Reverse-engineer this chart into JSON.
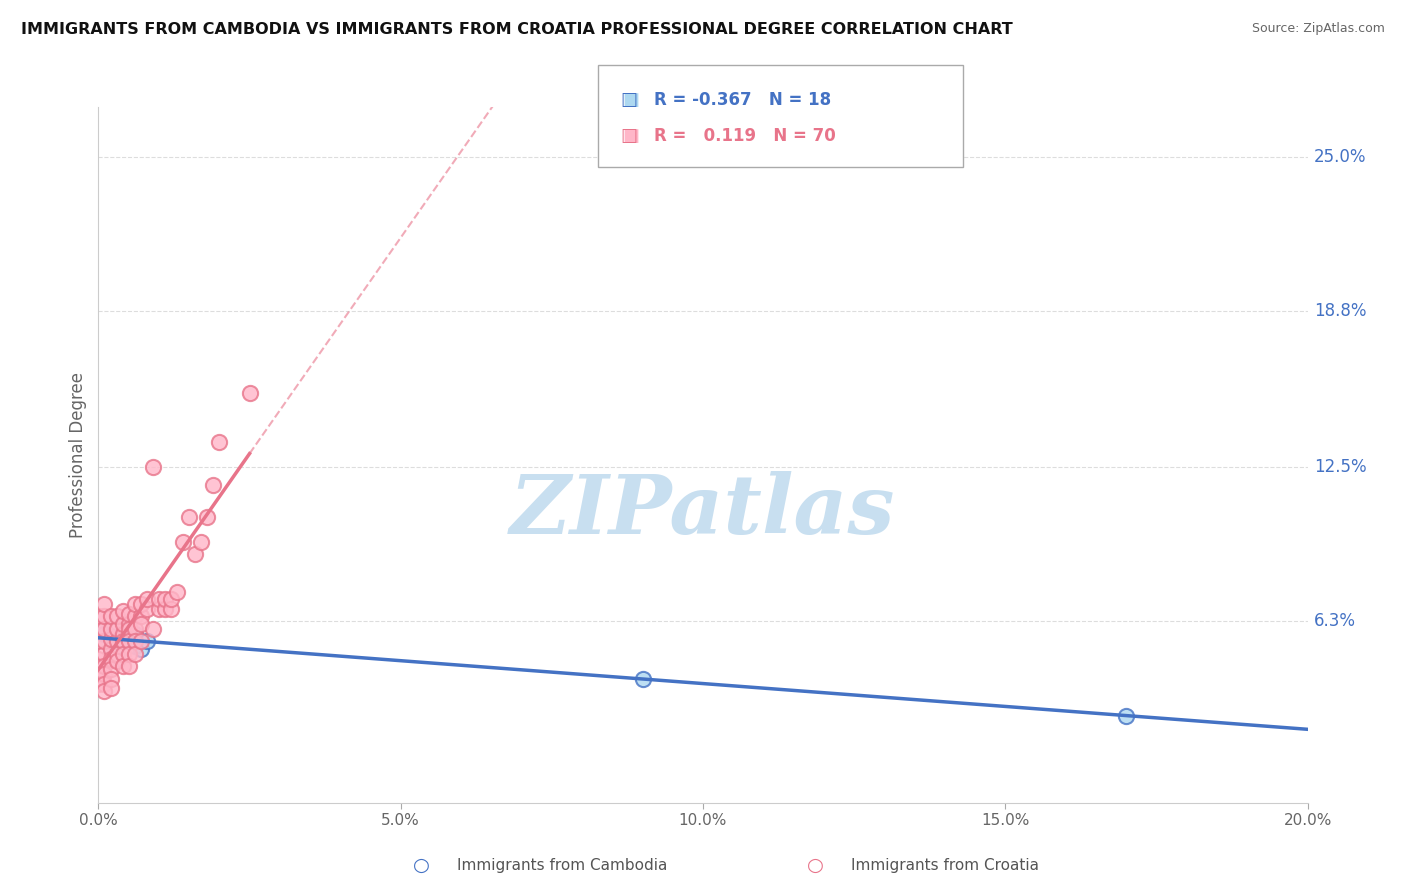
{
  "title": "IMMIGRANTS FROM CAMBODIA VS IMMIGRANTS FROM CROATIA PROFESSIONAL DEGREE CORRELATION CHART",
  "source": "Source: ZipAtlas.com",
  "ylabel": "Professional Degree",
  "xlim": [
    0,
    0.2
  ],
  "ylim": [
    -0.01,
    0.27
  ],
  "right_yticks": [
    0.063,
    0.125,
    0.188,
    0.25
  ],
  "right_yticklabels": [
    "6.3%",
    "12.5%",
    "18.8%",
    "25.0%"
  ],
  "xticks": [
    0.0,
    0.05,
    0.1,
    0.15,
    0.2
  ],
  "xticklabels": [
    "0.0%",
    "5.0%",
    "10.0%",
    "15.0%",
    "20.0%"
  ],
  "legend_R1": "-0.367",
  "legend_N1": "18",
  "legend_R2": "0.119",
  "legend_N2": "70",
  "color_cambodia_fill": "#ADD8F0",
  "color_croatia_fill": "#FFB6C8",
  "color_cambodia_line": "#4472C4",
  "color_croatia_line": "#E8748A",
  "watermark_color": "#C8DFF0",
  "background_color": "#FFFFFF",
  "grid_color": "#DDDDDD",
  "cambodia_x": [
    0.0,
    0.001,
    0.001,
    0.002,
    0.002,
    0.003,
    0.003,
    0.004,
    0.004,
    0.004,
    0.005,
    0.005,
    0.006,
    0.006,
    0.007,
    0.008,
    0.09,
    0.17
  ],
  "cambodia_y": [
    0.055,
    0.06,
    0.058,
    0.052,
    0.057,
    0.048,
    0.053,
    0.062,
    0.058,
    0.055,
    0.06,
    0.055,
    0.058,
    0.053,
    0.052,
    0.055,
    0.04,
    0.025
  ],
  "croatia_x": [
    0.0,
    0.0,
    0.0,
    0.0,
    0.0,
    0.0,
    0.0,
    0.0,
    0.001,
    0.001,
    0.001,
    0.001,
    0.001,
    0.001,
    0.001,
    0.001,
    0.001,
    0.002,
    0.002,
    0.002,
    0.002,
    0.002,
    0.002,
    0.002,
    0.002,
    0.003,
    0.003,
    0.003,
    0.003,
    0.003,
    0.004,
    0.004,
    0.004,
    0.004,
    0.004,
    0.004,
    0.005,
    0.005,
    0.005,
    0.005,
    0.005,
    0.005,
    0.006,
    0.006,
    0.006,
    0.006,
    0.006,
    0.007,
    0.007,
    0.007,
    0.007,
    0.008,
    0.008,
    0.009,
    0.009,
    0.01,
    0.01,
    0.011,
    0.011,
    0.012,
    0.012,
    0.013,
    0.014,
    0.015,
    0.016,
    0.017,
    0.018,
    0.019,
    0.02,
    0.025
  ],
  "croatia_y": [
    0.055,
    0.06,
    0.065,
    0.048,
    0.045,
    0.042,
    0.04,
    0.038,
    0.05,
    0.055,
    0.06,
    0.065,
    0.07,
    0.045,
    0.042,
    0.038,
    0.035,
    0.052,
    0.056,
    0.06,
    0.065,
    0.048,
    0.044,
    0.04,
    0.036,
    0.055,
    0.06,
    0.065,
    0.05,
    0.047,
    0.058,
    0.062,
    0.067,
    0.055,
    0.05,
    0.045,
    0.062,
    0.066,
    0.06,
    0.055,
    0.05,
    0.045,
    0.065,
    0.07,
    0.06,
    0.055,
    0.05,
    0.065,
    0.07,
    0.062,
    0.055,
    0.068,
    0.072,
    0.125,
    0.06,
    0.068,
    0.072,
    0.068,
    0.072,
    0.068,
    0.072,
    0.075,
    0.095,
    0.105,
    0.09,
    0.095,
    0.105,
    0.118,
    0.135,
    0.155
  ]
}
